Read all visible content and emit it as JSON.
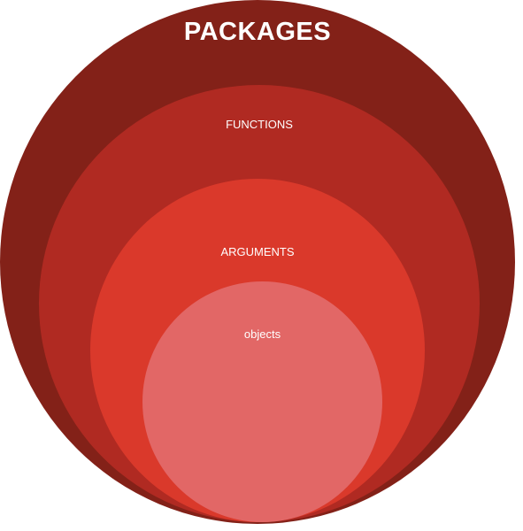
{
  "diagram": {
    "layers": {
      "packages": {
        "label": "PACKAGES",
        "color": "#832118"
      },
      "functions": {
        "label": "FUNCTIONS",
        "color": "#B02A22"
      },
      "arguments": {
        "label": "ARGUMENTS",
        "color": "#DA392B"
      },
      "objects": {
        "label": "objects",
        "color": "#E26766"
      }
    }
  }
}
